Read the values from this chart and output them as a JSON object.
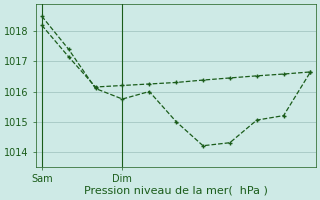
{
  "background_color": "#ceeae6",
  "grid_color": "#aaccc8",
  "line_color": "#1a5c1a",
  "line1_x": [
    0,
    1,
    2,
    3,
    4,
    5,
    6,
    7,
    8,
    9,
    10
  ],
  "line1_y": [
    1018.5,
    1017.4,
    1016.1,
    1015.75,
    1016.0,
    1015.0,
    1014.2,
    1014.3,
    1015.05,
    1015.2,
    1016.65
  ],
  "line2_x": [
    0,
    1,
    2,
    3,
    4,
    5,
    6,
    7,
    8,
    9,
    10
  ],
  "line2_y": [
    1018.2,
    1017.15,
    1016.15,
    1016.2,
    1016.25,
    1016.3,
    1016.38,
    1016.45,
    1016.52,
    1016.58,
    1016.65
  ],
  "sam_x": 0,
  "dim_x": 3.0,
  "xlabel": "Pression niveau de la mer(  hPa )",
  "ylim": [
    1013.5,
    1018.9
  ],
  "yticks": [
    1014,
    1015,
    1016,
    1017,
    1018
  ],
  "xlabel_fontsize": 8,
  "tick_fontsize": 7,
  "xlim": [
    -0.2,
    10.2
  ]
}
